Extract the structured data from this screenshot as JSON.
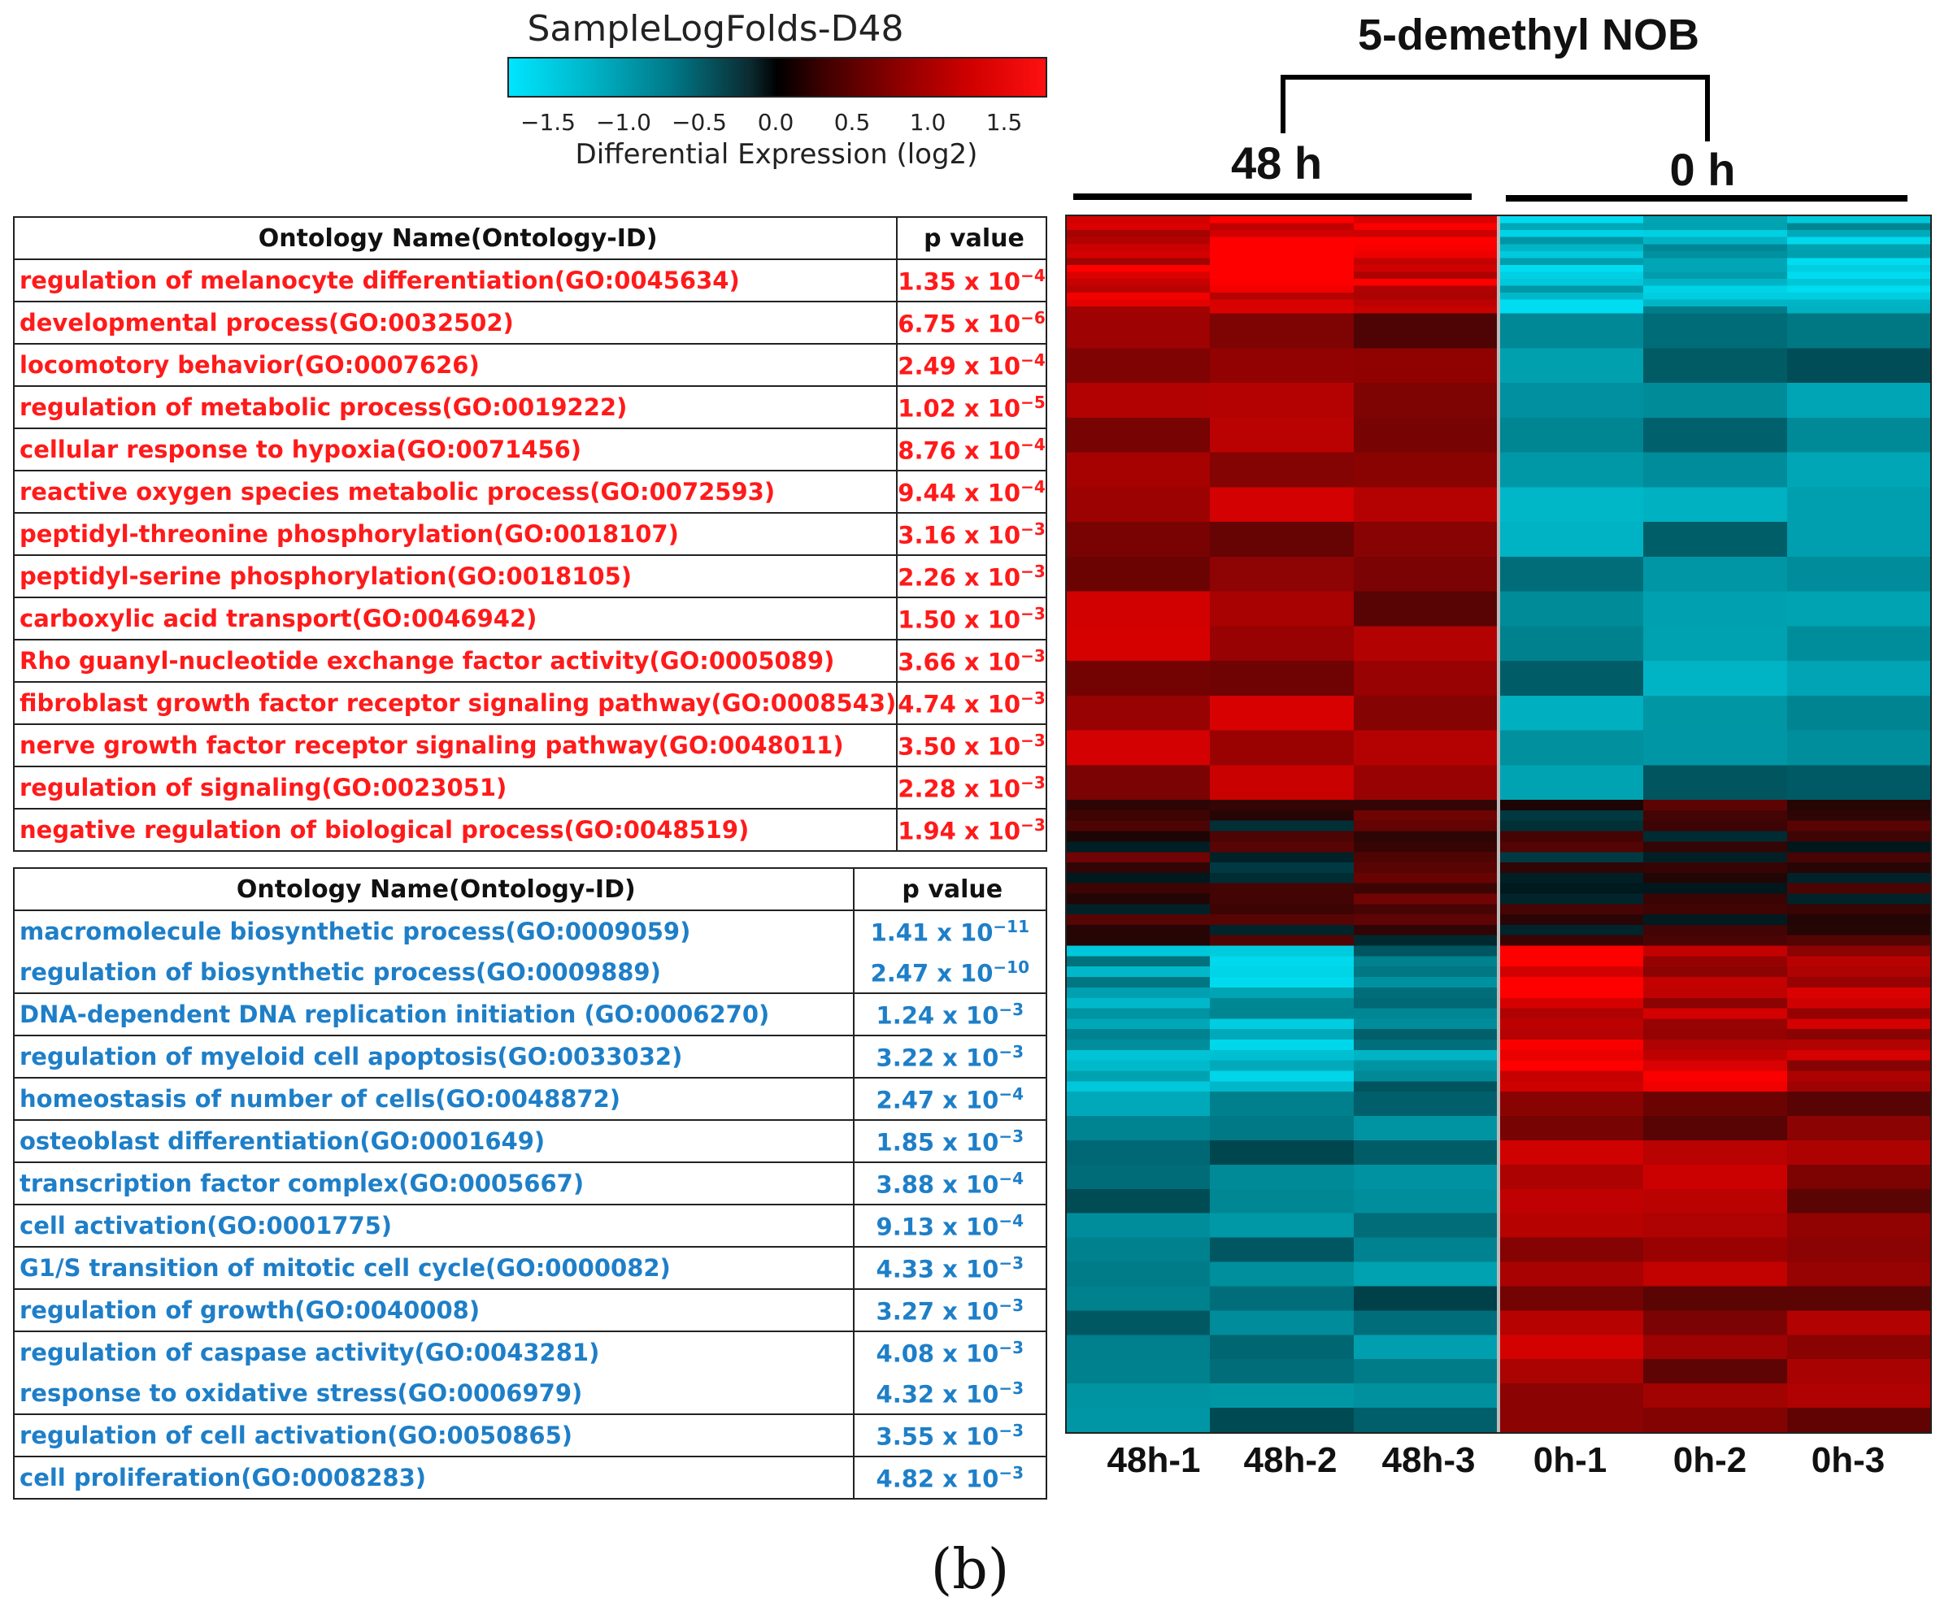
{
  "chart_data": {
    "type": "heatmap",
    "title": "5-demethyl NOB",
    "legend": {
      "title": "SampleLogFolds-D48",
      "xlabel": "Differential Expression (log2)",
      "range": [
        -1.75,
        1.75
      ],
      "ticks": [
        "−1.5",
        "−1.0",
        "−0.5",
        "0.0",
        "0.5",
        "1.0",
        "1.5"
      ],
      "tick_values": [
        -1.5,
        -1.0,
        -0.5,
        0.0,
        0.5,
        1.0,
        1.5
      ]
    },
    "groups": [
      {
        "label": "48 h",
        "samples": [
          "48h-1",
          "48h-2",
          "48h-3"
        ]
      },
      {
        "label": "0 h",
        "samples": [
          "0h-1",
          "0h-2",
          "0h-3"
        ]
      }
    ],
    "columns": [
      "48h-1",
      "48h-2",
      "48h-3",
      "0h-1",
      "0h-2",
      "0h-3"
    ],
    "row_blocks": [
      {
        "fraction": 0.08,
        "values": [
          1.4,
          1.6,
          1.5,
          -1.5,
          -1.3,
          -1.4
        ]
      },
      {
        "fraction": 0.4,
        "values": [
          1.0,
          1.0,
          0.8,
          -1.0,
          -1.0,
          -0.9
        ]
      },
      {
        "fraction": 0.12,
        "values": [
          0.2,
          0.1,
          0.2,
          0.1,
          0.2,
          0.1
        ]
      },
      {
        "fraction": 0.12,
        "values": [
          -1.2,
          -1.3,
          -1.0,
          1.5,
          1.3,
          1.2
        ]
      },
      {
        "fraction": 0.28,
        "values": [
          -0.9,
          -0.7,
          -0.8,
          1.0,
          0.9,
          0.9
        ]
      }
    ]
  },
  "header": {
    "title": "5-demethyl NOB",
    "group_48h": "48 h",
    "group_0h": "0 h",
    "legend_title": "SampleLogFolds-D48",
    "legend_label": "Differential Expression (log2)"
  },
  "samples": [
    "48h-1",
    "48h-2",
    "48h-3",
    "0h-1",
    "0h-2",
    "0h-3"
  ],
  "tables": {
    "up": {
      "col_name": "Ontology Name(Ontology-ID)",
      "col_p": "p value",
      "rows": [
        {
          "name": "regulation of melanocyte differentiation(GO:0045634)",
          "mant": "1.35 x 10",
          "exp": "−4"
        },
        {
          "name": "developmental process(GO:0032502)",
          "mant": "6.75 x 10",
          "exp": "−6"
        },
        {
          "name": "locomotory behavior(GO:0007626)",
          "mant": "2.49 x 10",
          "exp": "−4"
        },
        {
          "name": "regulation of metabolic process(GO:0019222)",
          "mant": "1.02 x 10",
          "exp": "−5"
        },
        {
          "name": "cellular response to hypoxia(GO:0071456)",
          "mant": "8.76 x 10",
          "exp": "−4"
        },
        {
          "name": "reactive oxygen species metabolic process(GO:0072593)",
          "mant": "9.44 x 10",
          "exp": "−4"
        },
        {
          "name": "peptidyl-threonine phosphorylation(GO:0018107)",
          "mant": "3.16 x 10",
          "exp": "−3"
        },
        {
          "name": "peptidyl-serine phosphorylation(GO:0018105)",
          "mant": "2.26 x 10",
          "exp": "−3"
        },
        {
          "name": "carboxylic acid transport(GO:0046942)",
          "mant": "1.50 x 10",
          "exp": "−3"
        },
        {
          "name": "Rho guanyl-nucleotide exchange factor activity(GO:0005089)",
          "mant": "3.66 x 10",
          "exp": "−3"
        },
        {
          "name": "fibroblast growth factor receptor signaling pathway(GO:0008543)",
          "mant": "4.74 x 10",
          "exp": "−3"
        },
        {
          "name": "nerve growth factor receptor signaling pathway(GO:0048011)",
          "mant": "3.50 x 10",
          "exp": "−3"
        },
        {
          "name": "regulation of signaling(GO:0023051)",
          "mant": "2.28 x 10",
          "exp": "−3"
        },
        {
          "name": "negative regulation of biological process(GO:0048519)",
          "mant": "1.94 x 10",
          "exp": "−3"
        }
      ]
    },
    "down": {
      "col_name": "Ontology Name(Ontology-ID)",
      "col_p": "p value",
      "rows": [
        {
          "name": "macromolecule biosynthetic process(GO:0009059)",
          "mant": "1.41 x 10",
          "exp": "−11"
        },
        {
          "name": "regulation of biosynthetic process(GO:0009889)",
          "mant": "2.47 x 10",
          "exp": "−10"
        },
        {
          "name": "DNA-dependent DNA replication initiation (GO:0006270)",
          "mant": "1.24 x 10",
          "exp": "−3"
        },
        {
          "name": "regulation of myeloid cell apoptosis(GO:0033032)",
          "mant": "3.22 x 10",
          "exp": "−3"
        },
        {
          "name": "homeostasis of number of cells(GO:0048872)",
          "mant": "2.47 x 10",
          "exp": "−4"
        },
        {
          "name": "osteoblast differentiation(GO:0001649)",
          "mant": "1.85 x 10",
          "exp": "−3"
        },
        {
          "name": "transcription factor complex(GO:0005667)",
          "mant": "3.88 x 10",
          "exp": "−4"
        },
        {
          "name": "cell activation(GO:0001775)",
          "mant": "9.13 x 10",
          "exp": "−4"
        },
        {
          "name": "G1/S transition of mitotic cell cycle(GO:0000082)",
          "mant": "4.33 x 10",
          "exp": "−3"
        },
        {
          "name": "regulation of growth(GO:0040008)",
          "mant": "3.27 x 10",
          "exp": "−3"
        },
        {
          "name": "regulation of caspase activity(GO:0043281)",
          "mant": "4.08 x 10",
          "exp": "−3"
        },
        {
          "name": "response to oxidative stress(GO:0006979)",
          "mant": "4.32 x 10",
          "exp": "−3"
        },
        {
          "name": "regulation of cell activation(GO:0050865)",
          "mant": "3.55 x 10",
          "exp": "−3"
        },
        {
          "name": "cell proliferation(GO:0008283)",
          "mant": "4.82 x 10",
          "exp": "−3"
        }
      ]
    }
  },
  "panel_label": "(b)"
}
